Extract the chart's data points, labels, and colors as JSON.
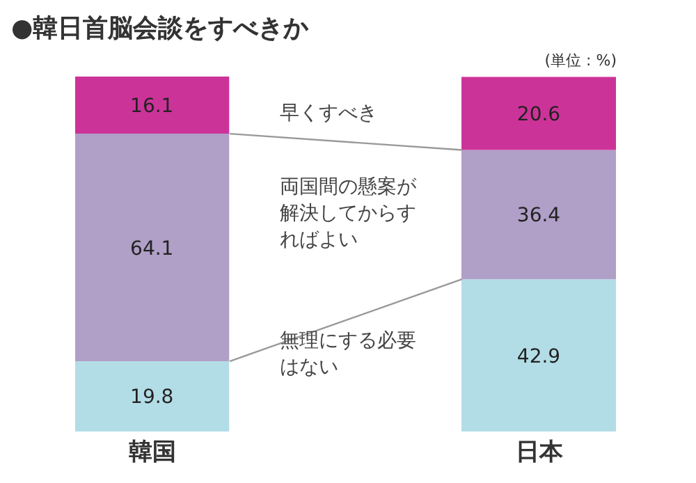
{
  "chart_data": {
    "type": "bar",
    "title": "●韓日首脳会談をすべきか",
    "annotations": [
      "(単位 : %)"
    ],
    "categories": [
      "韓国",
      "日本"
    ],
    "stacked": true,
    "data_labels": true,
    "series": [
      {
        "name": "無理にする必要はない",
        "color": "#b3dde6",
        "values": [
          19.8,
          42.9
        ]
      },
      {
        "name": "両国間の懸案が解決してからすればよい",
        "color": "#b09fc7",
        "values": [
          64.1,
          36.4
        ]
      },
      {
        "name": "早くすべき",
        "color": "#cc3399",
        "values": [
          16.1,
          20.6
        ]
      }
    ]
  }
}
